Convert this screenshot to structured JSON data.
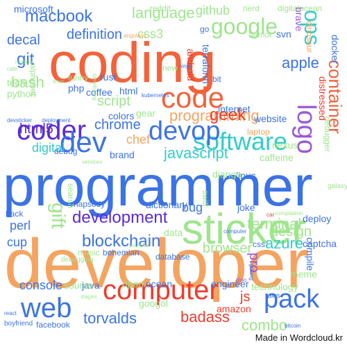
{
  "credit": "Made in Wordcloud.kr",
  "words": [
    {
      "t": "developer",
      "c": "#f4a460"
    },
    {
      "t": "programmer",
      "c": "#3b73e6"
    },
    {
      "t": "coding",
      "c": "#f4623a"
    },
    {
      "t": "sticker",
      "c": "#9ee58c"
    },
    {
      "t": "computer",
      "c": "#ef3b2c"
    },
    {
      "t": "coder",
      "c": "#5a2bd8"
    },
    {
      "t": "web",
      "c": "#3b73e6"
    },
    {
      "t": "pack",
      "c": "#3b73e6"
    },
    {
      "t": "code",
      "c": "#f4623a"
    },
    {
      "t": "software",
      "c": "#33cccc"
    },
    {
      "t": "devop",
      "c": "#3b73e6"
    },
    {
      "t": "dev",
      "c": "#3b73e6"
    },
    {
      "t": "google",
      "c": "#9ee58c"
    },
    {
      "t": "container",
      "c": "#f4623a"
    },
    {
      "t": "logo",
      "c": "#9b59d6"
    },
    {
      "t": "blockchain",
      "c": "#3b73e6"
    },
    {
      "t": "development",
      "c": "#5a2bd8"
    },
    {
      "t": "programming",
      "c": "#f4a460"
    },
    {
      "t": "macbook",
      "c": "#3b73e6"
    },
    {
      "t": "language",
      "c": "#9ee58c"
    },
    {
      "t": "git",
      "c": "#3b73e6"
    },
    {
      "t": "bash",
      "c": "#9ee58c"
    },
    {
      "t": "gift",
      "c": "#9ee58c"
    },
    {
      "t": "geek",
      "c": "#ef3b2c"
    },
    {
      "t": "terminal",
      "c": "#9ee58c"
    },
    {
      "t": "javascript",
      "c": "#33cccc"
    },
    {
      "t": "azure",
      "c": "#33cccc"
    },
    {
      "t": "design",
      "c": "#9ee58c"
    },
    {
      "t": "browser",
      "c": "#9ee58c"
    },
    {
      "t": "apple",
      "c": "#3b73e6"
    },
    {
      "t": "chrome",
      "c": "#3b73e6"
    },
    {
      "t": "html5",
      "c": "#5a2bd8"
    },
    {
      "t": "ops",
      "c": "#33cccc"
    },
    {
      "t": "decal",
      "c": "#3b73e6"
    },
    {
      "t": "definition",
      "c": "#3b73e6"
    },
    {
      "t": "github",
      "c": "#9ee58c"
    },
    {
      "t": "console",
      "c": "#3b73e6"
    },
    {
      "t": "torvalds",
      "c": "#3b73e6"
    },
    {
      "t": "badass",
      "c": "#ef3b2c"
    },
    {
      "t": "combo",
      "c": "#9ee58c"
    },
    {
      "t": "digital",
      "c": "#33cccc"
    },
    {
      "t": "perl",
      "c": "#3b73e6"
    },
    {
      "t": "cup",
      "c": "#3b73e6"
    },
    {
      "t": "bug",
      "c": "#3b73e6"
    },
    {
      "t": "script",
      "c": "#9ee58c"
    },
    {
      "t": "chef",
      "c": "#f4a460"
    },
    {
      "t": "css3",
      "c": "#9ee58c"
    },
    {
      "t": "js",
      "c": "#ef3b2c"
    },
    {
      "t": "pro",
      "c": "#9b59d6"
    },
    {
      "t": "microsoft",
      "c": "#3b73e6"
    },
    {
      "t": "reddit",
      "c": "#9ee58c"
    },
    {
      "t": "nerd",
      "c": "#9ee58c"
    },
    {
      "t": "digitalocean",
      "c": "#9ee58c"
    },
    {
      "t": "brave",
      "c": "#9b59d6"
    },
    {
      "t": "dinosaur",
      "c": "#f4a460"
    },
    {
      "t": "docker",
      "c": "#3b73e6"
    },
    {
      "t": "distressed",
      "c": "#ef3b2c"
    },
    {
      "t": "debugger",
      "c": "#9ee58c"
    },
    {
      "t": "nexus",
      "c": "#9ee58c"
    },
    {
      "t": "caffeine",
      "c": "#9ee58c"
    },
    {
      "t": "linus",
      "c": "#3b73e6"
    },
    {
      "t": "django",
      "c": "#9ee58c"
    },
    {
      "t": "dictionary",
      "c": "#3b73e6"
    },
    {
      "t": "joke",
      "c": "#3b73e6"
    },
    {
      "t": "deploy",
      "c": "#3b73e6"
    },
    {
      "t": "captcha",
      "c": "#3b73e6"
    },
    {
      "t": "engineer",
      "c": "#3b73e6"
    },
    {
      "t": "technology",
      "c": "#9ee58c"
    },
    {
      "t": "amazon",
      "c": "#ef3b2c"
    },
    {
      "t": "ocean",
      "c": "#3b73e6"
    },
    {
      "t": "java",
      "c": "#3b73e6"
    },
    {
      "t": "open",
      "c": "#9ee58c"
    },
    {
      "t": "googol",
      "c": "#9ee58c"
    },
    {
      "t": "meme",
      "c": "#9ee58c"
    },
    {
      "t": "compile",
      "c": "#3b73e6"
    },
    {
      "t": "source",
      "c": "#9ee58c"
    },
    {
      "t": "data",
      "c": "#9ee58c"
    },
    {
      "t": "css",
      "c": "#3b73e6"
    },
    {
      "t": "website",
      "c": "#3b73e6"
    },
    {
      "t": "internet",
      "c": "#3b73e6"
    },
    {
      "t": "laptop",
      "c": "#f4a460"
    },
    {
      "t": "android",
      "c": "#ef3b2c"
    },
    {
      "t": "terraform",
      "c": "#3b73e6"
    },
    {
      "t": "humor",
      "c": "#9ee58c"
    },
    {
      "t": "svn",
      "c": "#3b73e6"
    },
    {
      "t": "go",
      "c": "#3b73e6"
    },
    {
      "t": "alphabet",
      "c": "#9ee58c"
    },
    {
      "t": "php",
      "c": "#3b73e6"
    },
    {
      "t": "funny",
      "c": "#9ee58c"
    },
    {
      "t": "python",
      "c": "#9ee58c"
    },
    {
      "t": "tech",
      "c": "#9ee58c"
    },
    {
      "t": "rust",
      "c": "#3b73e6"
    },
    {
      "t": "coffee",
      "c": "#3b73e6"
    },
    {
      "t": "html",
      "c": "#3b73e6"
    },
    {
      "t": "colors",
      "c": "#3b73e6"
    },
    {
      "t": "gear",
      "c": "#9ee58c"
    },
    {
      "t": "brand",
      "c": "#3b73e6"
    },
    {
      "t": "debug",
      "c": "#3b73e6"
    },
    {
      "t": "kubernetes",
      "c": "#3b73e6"
    },
    {
      "t": "bit",
      "c": "#3b73e6"
    },
    {
      "t": "swift",
      "c": "#9ee58c"
    },
    {
      "t": "search",
      "c": "#9ee58c"
    },
    {
      "t": "rhapsody",
      "c": "#3b73e6"
    },
    {
      "t": "back",
      "c": "#3b73e6"
    },
    {
      "t": "music",
      "c": "#9ee58c"
    },
    {
      "t": "youtube",
      "c": "#9ee58c"
    },
    {
      "t": "debugging",
      "c": "#9ee58c"
    },
    {
      "t": "bohemian",
      "c": "#3b73e6"
    },
    {
      "t": "database",
      "c": "#3b73e6"
    },
    {
      "t": "golang",
      "c": "#3b73e6"
    },
    {
      "t": "galaxy",
      "c": "#9ee58c"
    },
    {
      "t": "computer",
      "c": "#3b73e6"
    },
    {
      "t": "compilation",
      "c": "#9ee58c"
    },
    {
      "t": "car",
      "c": "#ef3b2c"
    },
    {
      "t": "stages",
      "c": "#9ee58c"
    },
    {
      "t": "dino",
      "c": "#9b59d6"
    },
    {
      "t": "aws",
      "c": "#3b73e6"
    },
    {
      "t": "react",
      "c": "#3b73e6"
    },
    {
      "t": "boyfriend",
      "c": "#3b73e6"
    },
    {
      "t": "facebook",
      "c": "#3b73e6"
    },
    {
      "t": "bitcoin",
      "c": "#3b73e6"
    },
    {
      "t": "angularjs",
      "c": "#f4a460"
    },
    {
      "t": "devsticker",
      "c": "#3b73e6"
    },
    {
      "t": "deployment",
      "c": "#3b73e6"
    },
    {
      "t": "services",
      "c": "#9ee58c"
    },
    {
      "t": "new",
      "c": "#9ee58c"
    },
    {
      "t": "ninja",
      "c": "#3b73e6"
    },
    {
      "t": "cafe",
      "c": "#9ee58c"
    },
    {
      "t": "linux",
      "c": "#9ee58c"
    },
    {
      "t": "developing",
      "c": "#9ee58c"
    },
    {
      "t": "readds",
      "c": "#9ee58c"
    },
    {
      "t": "bugs",
      "c": "#9ee58c"
    }
  ]
}
